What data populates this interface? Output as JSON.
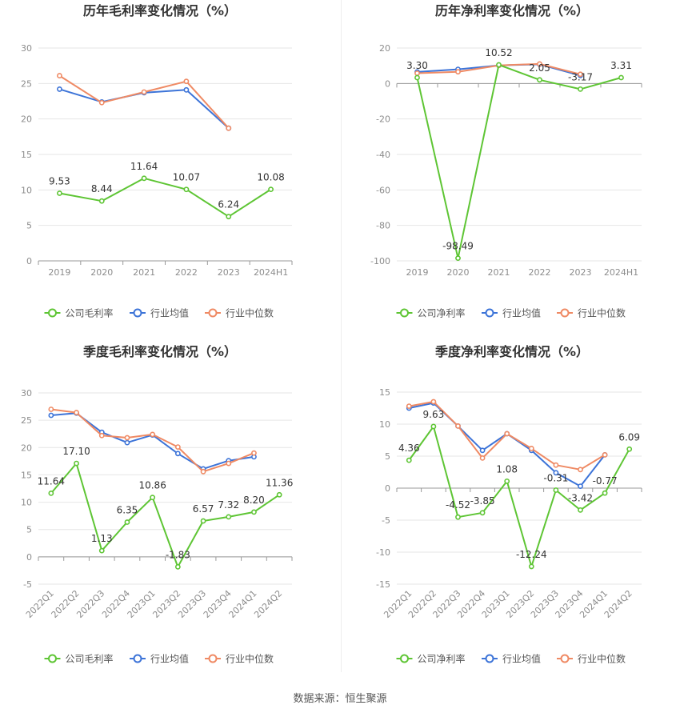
{
  "colors": {
    "company": "#5ec534",
    "industry_avg": "#3d74d8",
    "industry_median": "#ef8a64",
    "grid": "#e6e6e6",
    "axis_text": "#8c8c8c",
    "label_text": "#333333"
  },
  "source_text": "数据来源：恒生聚源",
  "chart_data": [
    {
      "type": "line",
      "title": "历年毛利率变化情况（%）",
      "categories": [
        "2019",
        "2020",
        "2021",
        "2022",
        "2023",
        "2024H1"
      ],
      "ylim": [
        0,
        30
      ],
      "yticks": [
        0,
        5,
        10,
        15,
        20,
        25,
        30
      ],
      "rotate_x_labels": false,
      "series": [
        {
          "name": "公司毛利率",
          "color_key": "company",
          "values": [
            9.53,
            8.44,
            11.64,
            10.07,
            6.24,
            10.08
          ],
          "labels": [
            "9.53",
            "8.44",
            "11.64",
            "10.07",
            "6.24",
            "10.08"
          ]
        },
        {
          "name": "行业均值",
          "color_key": "industry_avg",
          "values": [
            24.2,
            22.4,
            23.7,
            24.1,
            18.7,
            null
          ]
        },
        {
          "name": "行业中位数",
          "color_key": "industry_median",
          "values": [
            26.1,
            22.3,
            23.8,
            25.3,
            18.7,
            null
          ]
        }
      ],
      "legend": "bottom"
    },
    {
      "type": "line",
      "title": "历年净利率变化情况（%）",
      "categories": [
        "2019",
        "2020",
        "2021",
        "2022",
        "2023",
        "2024H1"
      ],
      "ylim": [
        -100,
        20
      ],
      "yticks": [
        -100,
        -80,
        -60,
        -40,
        -20,
        0,
        20
      ],
      "rotate_x_labels": false,
      "series": [
        {
          "name": "公司净利率",
          "color_key": "company",
          "values": [
            3.3,
            -98.49,
            10.52,
            2.05,
            -3.17,
            3.31
          ],
          "labels": [
            "3.30",
            "-98.49",
            "10.52",
            "2.05",
            "-3.17",
            "3.31"
          ]
        },
        {
          "name": "行业均值",
          "color_key": "industry_avg",
          "values": [
            6.5,
            8.0,
            10.2,
            10.8,
            4.5,
            null
          ]
        },
        {
          "name": "行业中位数",
          "color_key": "industry_median",
          "values": [
            5.8,
            6.6,
            10.2,
            11.0,
            5.2,
            null
          ]
        }
      ],
      "legend": "bottom"
    },
    {
      "type": "line",
      "title": "季度毛利率变化情况（%）",
      "categories": [
        "2022Q1",
        "2022Q2",
        "2022Q3",
        "2022Q4",
        "2023Q1",
        "2023Q2",
        "2023Q3",
        "2023Q4",
        "2024Q1",
        "2024Q2"
      ],
      "ylim": [
        -5,
        30
      ],
      "yticks": [
        -5,
        0,
        5,
        10,
        15,
        20,
        25,
        30
      ],
      "rotate_x_labels": true,
      "series": [
        {
          "name": "公司毛利率",
          "color_key": "company",
          "values": [
            11.64,
            17.1,
            1.13,
            6.35,
            10.86,
            -1.83,
            6.57,
            7.32,
            8.2,
            11.36
          ],
          "labels": [
            "11.64",
            "17.10",
            "1.13",
            "6.35",
            "10.86",
            "-1.83",
            "6.57",
            "7.32",
            "8.20",
            "11.36"
          ]
        },
        {
          "name": "行业均值",
          "color_key": "industry_avg",
          "values": [
            25.9,
            26.3,
            22.8,
            20.9,
            22.3,
            18.9,
            16.1,
            17.6,
            18.3,
            null
          ]
        },
        {
          "name": "行业中位数",
          "color_key": "industry_median",
          "values": [
            27.0,
            26.4,
            22.2,
            21.8,
            22.4,
            20.1,
            15.6,
            17.1,
            19.0,
            null
          ]
        }
      ],
      "legend": "bottom"
    },
    {
      "type": "line",
      "title": "季度净利率变化情况（%）",
      "categories": [
        "2022Q1",
        "2022Q2",
        "2022Q3",
        "2022Q4",
        "2023Q1",
        "2023Q2",
        "2023Q3",
        "2023Q4",
        "2024Q1",
        "2024Q2"
      ],
      "ylim": [
        -15,
        15
      ],
      "yticks": [
        -15,
        -10,
        -5,
        0,
        5,
        10,
        15
      ],
      "rotate_x_labels": true,
      "series": [
        {
          "name": "公司净利率",
          "color_key": "company",
          "values": [
            4.36,
            9.63,
            -4.52,
            -3.85,
            1.08,
            -12.24,
            -0.31,
            -3.42,
            -0.77,
            6.09
          ],
          "labels": [
            "4.36",
            "9.63",
            "-4.52",
            "-3.85",
            "1.08",
            "-12.24",
            "-0.31",
            "-3.42",
            "-0.77",
            "6.09"
          ]
        },
        {
          "name": "行业均值",
          "color_key": "industry_avg",
          "values": [
            12.5,
            13.3,
            9.7,
            5.9,
            8.5,
            5.9,
            2.4,
            0.3,
            5.2,
            null
          ]
        },
        {
          "name": "行业中位数",
          "color_key": "industry_median",
          "values": [
            12.8,
            13.5,
            9.7,
            4.7,
            8.5,
            6.2,
            3.6,
            2.9,
            5.2,
            null
          ]
        }
      ],
      "legend": "bottom"
    }
  ]
}
